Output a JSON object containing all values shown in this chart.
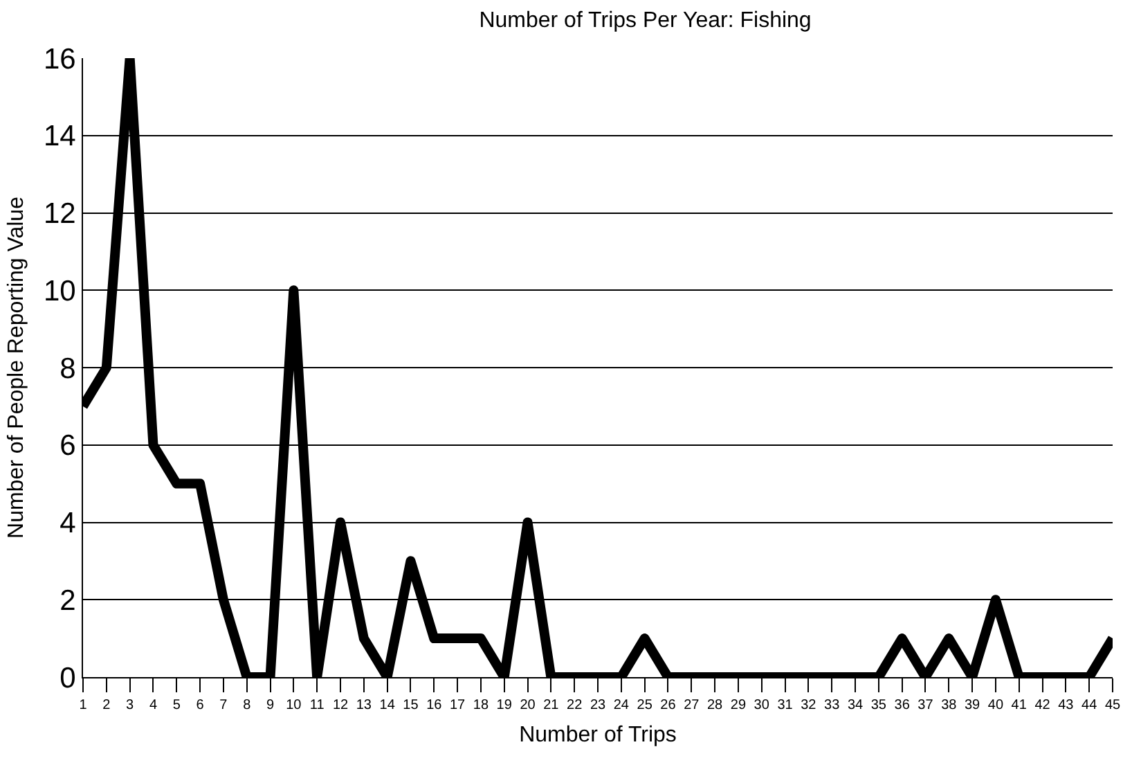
{
  "chart_data": {
    "type": "line",
    "title": "Number of Trips Per Year: Fishing",
    "xlabel": "Number of Trips",
    "ylabel": "Number of People Reporting Value",
    "x": [
      1,
      2,
      3,
      4,
      5,
      6,
      7,
      8,
      9,
      10,
      11,
      12,
      13,
      14,
      15,
      16,
      17,
      18,
      19,
      20,
      21,
      22,
      23,
      24,
      25,
      26,
      27,
      28,
      29,
      30,
      31,
      32,
      33,
      34,
      35,
      36,
      37,
      38,
      39,
      40,
      41,
      42,
      43,
      44,
      45
    ],
    "series": [
      {
        "color": "#000000",
        "values": [
          7,
          8,
          16,
          6,
          5,
          5,
          2,
          0,
          0,
          10,
          0,
          4,
          1,
          0,
          3,
          1,
          1,
          1,
          0,
          4,
          0,
          0,
          0,
          0,
          1,
          0,
          0,
          0,
          0,
          0,
          0,
          0,
          0,
          0,
          0,
          1,
          0,
          1,
          0,
          2,
          0,
          0,
          0,
          0,
          1
        ]
      }
    ],
    "xlim": [
      1,
      45
    ],
    "xticks": [
      1,
      2,
      3,
      4,
      5,
      6,
      7,
      8,
      9,
      10,
      11,
      12,
      13,
      14,
      15,
      16,
      17,
      18,
      19,
      20,
      21,
      22,
      23,
      24,
      25,
      26,
      27,
      28,
      29,
      30,
      31,
      32,
      33,
      34,
      35,
      36,
      37,
      38,
      39,
      40,
      41,
      42,
      43,
      44,
      45
    ],
    "ylim": [
      0,
      16
    ],
    "yticks": [
      0,
      2,
      4,
      6,
      8,
      10,
      12,
      14,
      16
    ],
    "grid": "y",
    "marker": "none",
    "line_style": "solid"
  }
}
